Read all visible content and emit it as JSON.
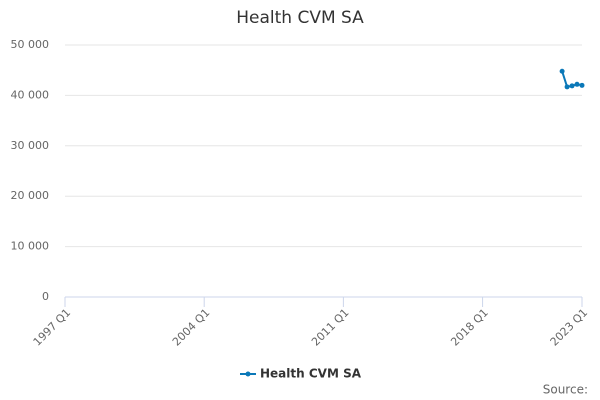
{
  "chart_data": {
    "type": "line",
    "title": "Health CVM SA",
    "x": [
      "2022 Q1",
      "2022 Q2",
      "2022 Q3",
      "2022 Q4",
      "2023 Q1"
    ],
    "series": [
      {
        "name": "Health CVM SA",
        "color": "#0b78b8",
        "values": [
          44800,
          41700,
          41900,
          42200,
          42000
        ]
      }
    ],
    "xlim": [
      "1997 Q1",
      "2023 Q1"
    ],
    "xticks": [
      "1997 Q1",
      "2004 Q1",
      "2011 Q1",
      "2018 Q1",
      "2023 Q1"
    ],
    "ylim": [
      0,
      50000
    ],
    "yticks": [
      0,
      {
        "value": 10000,
        "label": "10 000"
      },
      {
        "value": 20000,
        "label": "20 000"
      },
      {
        "value": 30000,
        "label": "30 000"
      },
      {
        "value": 40000,
        "label": "40 000"
      },
      {
        "value": 50000,
        "label": "50 000"
      }
    ],
    "grid": true,
    "legend": "bottom",
    "source": "Source:"
  }
}
